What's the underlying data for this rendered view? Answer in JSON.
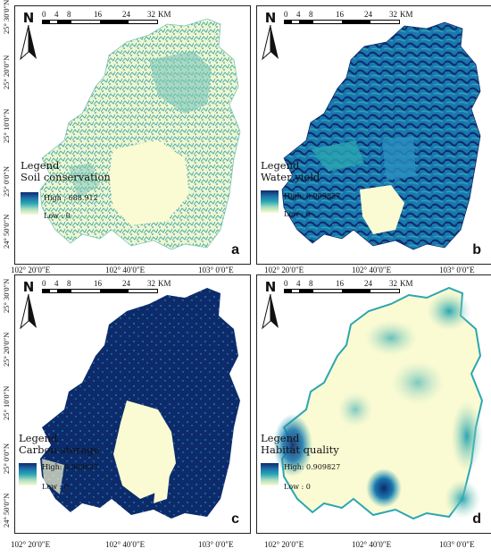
{
  "scale": {
    "ticks": [
      "0",
      "4",
      "8",
      "16",
      "24",
      "32"
    ],
    "unit": "KM",
    "label_end": "32 KM"
  },
  "north_label": "N",
  "lat_ticks": [
    "25° 30′0″N",
    "25° 20′0″N",
    "25° 10′0″N",
    "25° 0′0″N",
    "24° 50′0″N"
  ],
  "lon_ticks": [
    "102° 20′0″E",
    "102° 40′0″E",
    "103° 0′0″E"
  ],
  "panels": {
    "a": {
      "letter": "a",
      "legend_title": "Legend",
      "layer": "Soil conservation",
      "high": "High : 688.912",
      "low": "Low : 0",
      "ramp": [
        "#0e2a6e",
        "#1d6fa8",
        "#2aa7b5",
        "#a8dcc0",
        "#fbfbd0"
      ]
    },
    "b": {
      "letter": "b",
      "legend_title": "Legend",
      "layer": "Water yield",
      "high": "High: 0.909827",
      "low": "Low : 0",
      "ramp": [
        "#0e2a6e",
        "#1d6fa8",
        "#2aa7b5",
        "#a8dcc0",
        "#fbfbd0"
      ]
    },
    "c": {
      "letter": "c",
      "legend_title": "Legend",
      "layer": "Carbon storage",
      "high": "High: 0.909827",
      "low": "Low : 0",
      "ramp": [
        "#0e2a6e",
        "#1d6fa8",
        "#2aa7b5",
        "#a8dcc0",
        "#fbfbd0"
      ]
    },
    "d": {
      "letter": "d",
      "legend_title": "Legend",
      "layer": "Habitat quality",
      "high": "High: 0.909827",
      "low": "Low : 0",
      "ramp": [
        "#0e2a6e",
        "#1d6fa8",
        "#2aa7b5",
        "#a8dcc0",
        "#fbfbd0"
      ]
    }
  },
  "colors": {
    "dark": "#0d2b6b",
    "mid": "#1a77b0",
    "teal": "#2aa6b2",
    "pale": "#fbfbd3"
  }
}
